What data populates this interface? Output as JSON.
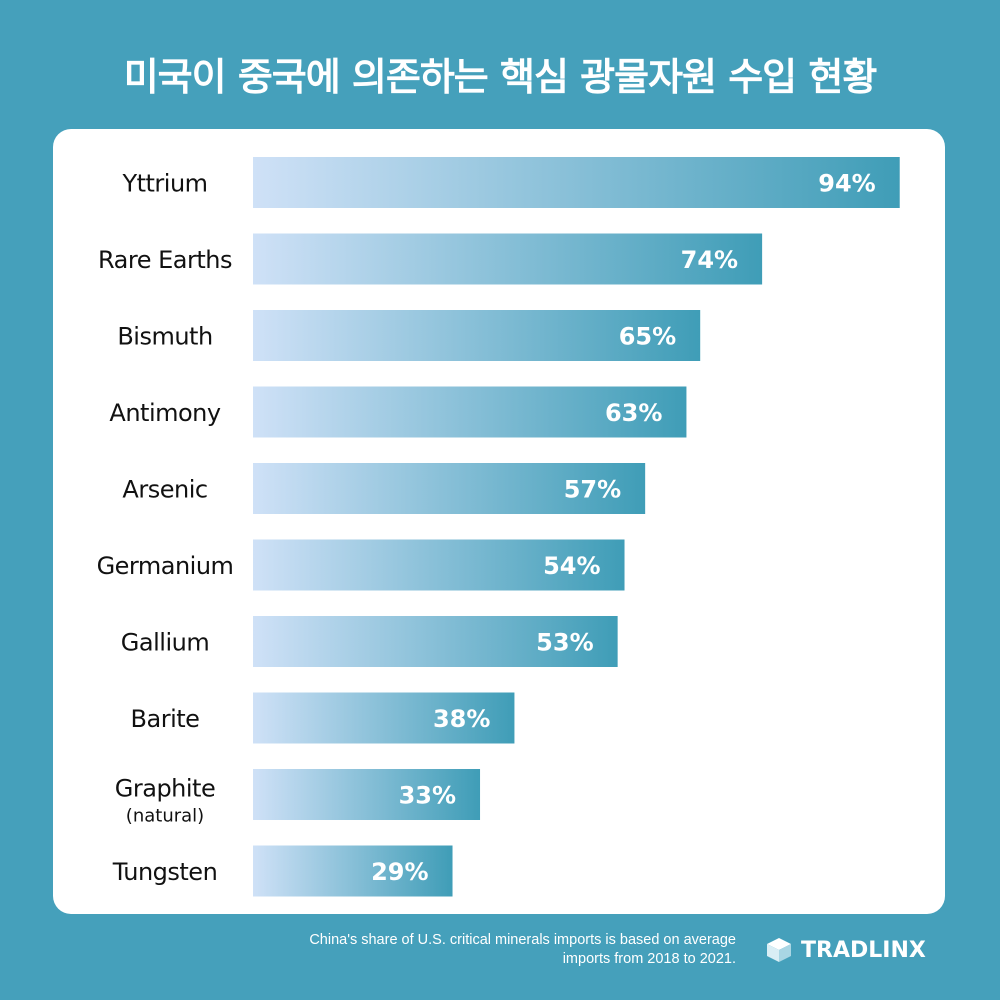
{
  "title": "미국이 중국에 의존하는 핵심 광물자원 수입 현황",
  "chart_data": {
    "type": "bar",
    "orientation": "horizontal",
    "categories": [
      "Yttrium",
      "Rare Earths",
      "Bismuth",
      "Antimony",
      "Arsenic",
      "Germanium",
      "Gallium",
      "Barite",
      "Graphite",
      "Tungsten"
    ],
    "category_sublabels": [
      "",
      "",
      "",
      "",
      "",
      "",
      "",
      "",
      "(natural)",
      ""
    ],
    "values": [
      94,
      74,
      65,
      63,
      57,
      54,
      53,
      38,
      33,
      29
    ],
    "value_labels": [
      "94%",
      "74%",
      "65%",
      "63%",
      "57%",
      "54%",
      "53%",
      "38%",
      "33%",
      "29%"
    ],
    "xlim": [
      0,
      100
    ],
    "grid": false,
    "legend": "none",
    "bar_gradient": [
      "#cfe1f7",
      "#3f9db7"
    ]
  },
  "footnote": {
    "line1": "China's share of U.S. critical minerals imports is based on average",
    "line2": "imports from 2018 to 2021."
  },
  "brand": {
    "name": "TRADLINX",
    "icon": "cube-logo-icon"
  },
  "colors": {
    "background": "#45a0bb",
    "card": "#ffffff"
  }
}
